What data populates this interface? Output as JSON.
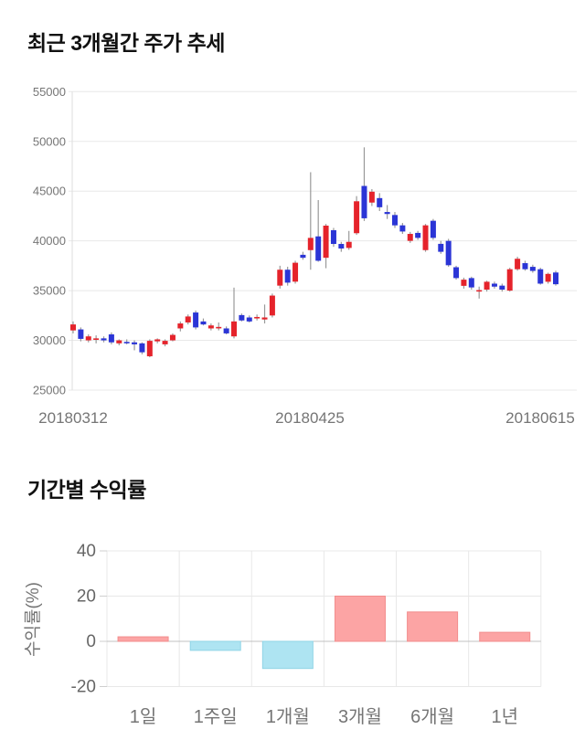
{
  "page": {
    "background": "#ffffff",
    "text_color": "#111111",
    "axis_text_color": "#757575",
    "grid_color": "#e8e8e8",
    "zero_line_color": "#c0c0c0"
  },
  "chart_data": [
    {
      "type": "candlestick",
      "title": "최근 3개월간 주가 추세",
      "ylim": [
        25000,
        55000
      ],
      "y_ticks": [
        55000,
        50000,
        45000,
        40000,
        35000,
        30000,
        25000
      ],
      "x_labels": [
        "20180312",
        "20180425",
        "20180615"
      ],
      "legend_position": "none",
      "grid": "horizontal",
      "up_color": "#e5232b",
      "down_color": "#2b35d6",
      "wick_color": "#999999",
      "candles_ohlc": [
        [
          31000,
          31900,
          30700,
          31600
        ],
        [
          31100,
          31300,
          29900,
          30150
        ],
        [
          30000,
          30600,
          29800,
          30400
        ],
        [
          30100,
          30500,
          29700,
          30200
        ],
        [
          30200,
          30400,
          29800,
          30000
        ],
        [
          30600,
          30800,
          29600,
          29800
        ],
        [
          29700,
          30100,
          29500,
          30000
        ],
        [
          29850,
          30100,
          29600,
          29800
        ],
        [
          29800,
          30000,
          29000,
          29600
        ],
        [
          29700,
          29800,
          28600,
          28800
        ],
        [
          28400,
          30100,
          28300,
          29950
        ],
        [
          29900,
          30200,
          29700,
          30100
        ],
        [
          29600,
          30100,
          29400,
          29950
        ],
        [
          30000,
          30700,
          29900,
          30550
        ],
        [
          31200,
          31900,
          30900,
          31700
        ],
        [
          31800,
          32600,
          31600,
          32400
        ],
        [
          32800,
          33000,
          31100,
          31300
        ],
        [
          31900,
          32200,
          31500,
          31600
        ],
        [
          31200,
          31700,
          31000,
          31500
        ],
        [
          31250,
          31800,
          31000,
          31350
        ],
        [
          31200,
          31400,
          30600,
          30700
        ],
        [
          30400,
          35300,
          30200,
          31900
        ],
        [
          32540,
          32700,
          31900,
          32000
        ],
        [
          32300,
          32500,
          31800,
          31900
        ],
        [
          32250,
          32600,
          32000,
          32350
        ],
        [
          32100,
          33600,
          31700,
          32300
        ],
        [
          32500,
          34700,
          32300,
          34500
        ],
        [
          35500,
          37500,
          35200,
          37100
        ],
        [
          37100,
          37400,
          35500,
          35800
        ],
        [
          35900,
          38000,
          35700,
          37800
        ],
        [
          38600,
          38900,
          38100,
          38300
        ],
        [
          39070,
          46900,
          37100,
          40300
        ],
        [
          40450,
          44100,
          37900,
          38000
        ],
        [
          38300,
          41700,
          37250,
          41530
        ],
        [
          41070,
          41300,
          39400,
          39690
        ],
        [
          39690,
          39900,
          38900,
          39230
        ],
        [
          39290,
          41000,
          39100,
          39900
        ],
        [
          40770,
          44500,
          40600,
          43980
        ],
        [
          45520,
          49400,
          42000,
          42270
        ],
        [
          43850,
          45200,
          43500,
          44940
        ],
        [
          44300,
          44800,
          43000,
          43380
        ],
        [
          42900,
          43600,
          42200,
          42700
        ],
        [
          42600,
          42900,
          41300,
          41560
        ],
        [
          41560,
          41800,
          40700,
          40940
        ],
        [
          40000,
          40900,
          39800,
          40700
        ],
        [
          40800,
          41000,
          40100,
          40300
        ],
        [
          39070,
          41700,
          38900,
          41560
        ],
        [
          42020,
          42200,
          40100,
          40300
        ],
        [
          39700,
          40000,
          38700,
          38900
        ],
        [
          40000,
          40200,
          37400,
          37550
        ],
        [
          37350,
          37500,
          36100,
          36260
        ],
        [
          35480,
          36300,
          35200,
          36100
        ],
        [
          36260,
          36400,
          35100,
          35320
        ],
        [
          34950,
          35400,
          34200,
          35050
        ],
        [
          35100,
          36000,
          34900,
          35890
        ],
        [
          35700,
          35900,
          35200,
          35400
        ],
        [
          35500,
          35700,
          34900,
          35100
        ],
        [
          35000,
          37300,
          34900,
          37150
        ],
        [
          37150,
          38400,
          37000,
          38200
        ],
        [
          37760,
          38000,
          37000,
          37150
        ],
        [
          37390,
          37600,
          36800,
          36980
        ],
        [
          37150,
          37300,
          35600,
          35700
        ],
        [
          35890,
          36800,
          35700,
          36680
        ],
        [
          36820,
          37000,
          35500,
          35640
        ]
      ]
    },
    {
      "type": "bar",
      "title": "기간별 수익률",
      "ylabel": "수익률(%)",
      "categories": [
        "1일",
        "1주일",
        "1개월",
        "3개월",
        "6개월",
        "1년"
      ],
      "values": [
        2,
        -4,
        -12,
        20,
        13,
        4
      ],
      "y_ticks": [
        40,
        20,
        0,
        -20
      ],
      "ylim": [
        -20,
        40
      ],
      "grid": "both",
      "legend_position": "none",
      "positive_color": "#fca4a4",
      "positive_border": "#f28d8d",
      "negative_color": "#aee4f2",
      "negative_border": "#8fd4e6"
    }
  ]
}
